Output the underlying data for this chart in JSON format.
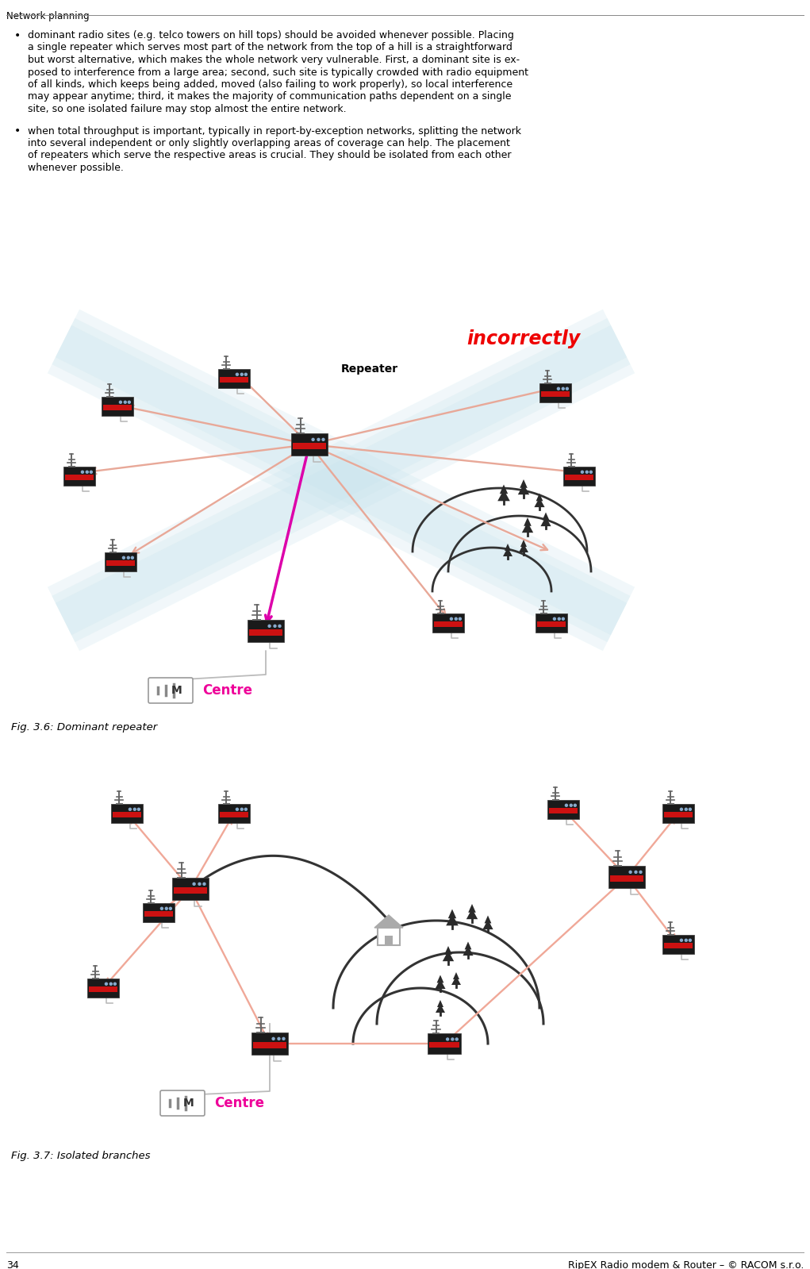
{
  "page_title": "Network planning",
  "page_number": "34",
  "footer": "RipEX Radio modem & Router – © RACOM s.r.o.",
  "bg_color": "#ffffff",
  "bullet1_lines": [
    "dominant radio sites (e.g. telco towers on hill tops) should be avoided whenever possible. Placing",
    "a single repeater which serves most part of the network from the top of a hill is a straightforward",
    "but worst alternative, which makes the whole network very vulnerable. First, a dominant site is ex-",
    "posed to interference from a large area; second, such site is typically crowded with radio equipment",
    "of all kinds, which keeps being added, moved (also failing to work properly), so local interference",
    "may appear anytime; third, it makes the majority of communication paths dependent on a single",
    "site, so one isolated failure may stop almost the entire network."
  ],
  "bullet2_lines": [
    "when total throughput is important, typically in report-by-exception networks, splitting the network",
    "into several independent or only slightly overlapping areas of coverage can help. The placement",
    "of repeaters which serve the respective areas is crucial. They should be isolated from each other",
    "whenever possible."
  ],
  "fig1_label": "incorrectly",
  "fig1_label_color": "#ee0000",
  "fig1_repeater_label": "Repeater",
  "fig1_centre_label": "Centre",
  "fig1_centre_color": "#ee0099",
  "fig1_caption": "Fig. 3.6: Dominant repeater",
  "fig2_centre_label": "Centre",
  "fig2_centre_color": "#ee0099",
  "fig2_caption": "Fig. 3.7: Isolated branches",
  "arrow_color1": "#e8a898",
  "arrow_color2": "#f0a898",
  "magenta_color": "#dd00aa",
  "blue_beam_color": "#add8e6",
  "dark_color": "#333333",
  "tree_color": "#2a2a2a",
  "hill_color": "#d8d8d8",
  "antenna_color": "#666666",
  "device_dark": "#1a1a1a",
  "device_red": "#cc1111"
}
